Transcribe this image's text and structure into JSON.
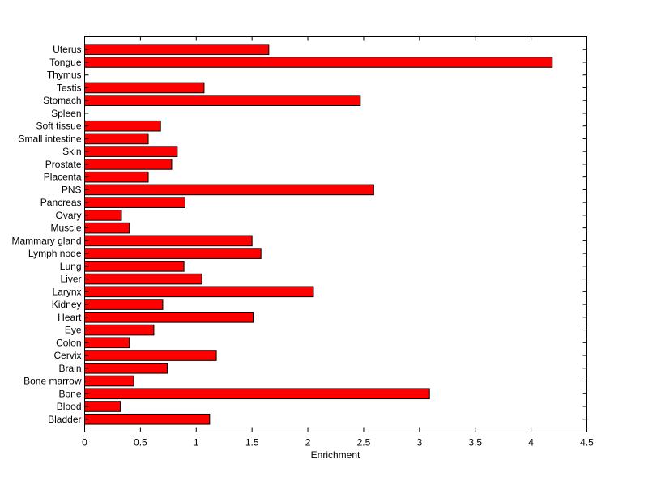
{
  "chart_data": {
    "type": "bar",
    "orientation": "horizontal",
    "title": "",
    "xlabel": "Enrichment",
    "ylabel": "",
    "xlim": [
      0,
      4.5
    ],
    "xticks": [
      0,
      0.5,
      1,
      1.5,
      2,
      2.5,
      3,
      3.5,
      4,
      4.5
    ],
    "xtick_labels": [
      "0",
      "0.5",
      "1",
      "1.5",
      "2",
      "2.5",
      "3",
      "3.5",
      "4",
      "4.5"
    ],
    "grid": false,
    "bar_color": "#ff0000",
    "categories": [
      "Bladder",
      "Blood",
      "Bone",
      "Bone marrow",
      "Brain",
      "Cervix",
      "Colon",
      "Eye",
      "Heart",
      "Kidney",
      "Larynx",
      "Liver",
      "Lung",
      "Lymph node",
      "Mammary gland",
      "Muscle",
      "Ovary",
      "Pancreas",
      "PNS",
      "Placenta",
      "Prostate",
      "Skin",
      "Small intestine",
      "Soft tissue",
      "Spleen",
      "Stomach",
      "Testis",
      "Thymus",
      "Tongue",
      "Uterus"
    ],
    "values": [
      1.12,
      0.32,
      3.09,
      0.44,
      0.74,
      1.18,
      0.4,
      0.62,
      1.51,
      0.7,
      2.05,
      1.05,
      0.89,
      1.58,
      1.5,
      0.4,
      0.33,
      0.9,
      2.59,
      0.57,
      0.78,
      0.83,
      0.57,
      0.68,
      0,
      2.47,
      1.07,
      0,
      4.19,
      1.65
    ]
  }
}
